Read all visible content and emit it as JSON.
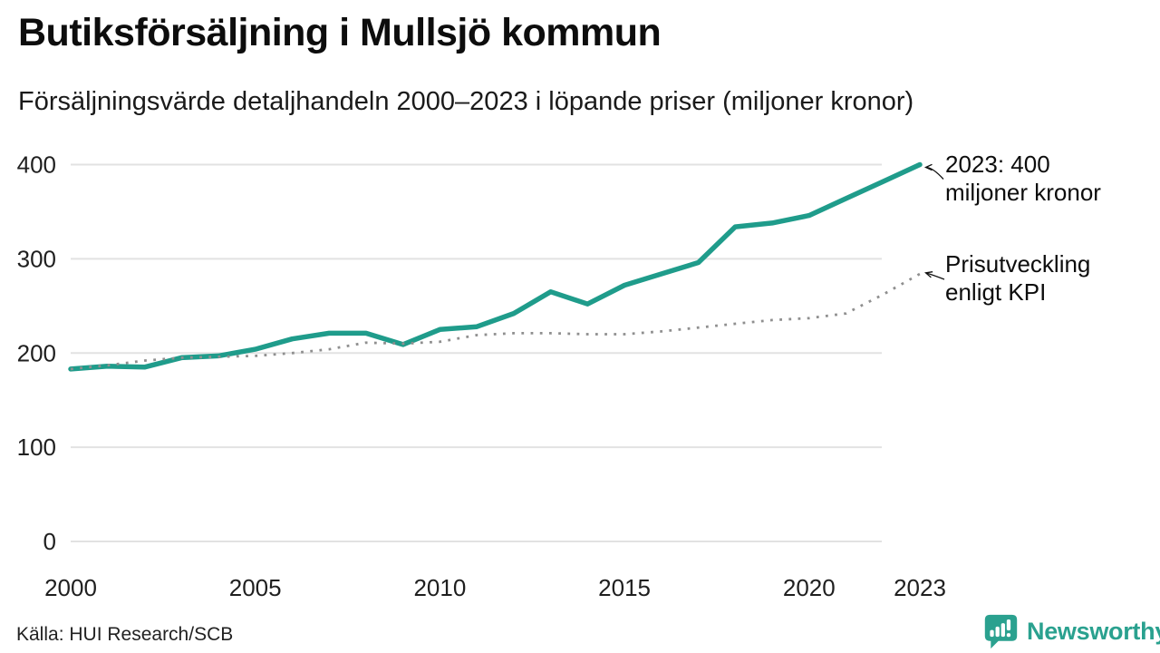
{
  "title": "Butiksförsäljning i Mullsjö kommun",
  "subtitle": "Försäljningsvärde detaljhandeln 2000–2023 i löpande priser (miljoner kronor)",
  "source": "Källa: HUI Research/SCB",
  "logo": {
    "text": "Newsworthy",
    "icon": "bar-chart-speech-bubble-icon"
  },
  "annotations": {
    "sales_end": {
      "line1": "2023: 400",
      "line2": "miljoner kronor"
    },
    "kpi_end": {
      "line1": "Prisutveckling",
      "line2": "enligt KPI"
    }
  },
  "colors": {
    "sales_line": "#1f9c8b",
    "kpi_line": "#8f8f8f",
    "grid": "#e2e2e2",
    "arrow": "#111111",
    "logo_teal": "#2aa18f"
  },
  "chart_data": {
    "type": "line",
    "x": [
      2000,
      2001,
      2002,
      2003,
      2004,
      2005,
      2006,
      2007,
      2008,
      2009,
      2010,
      2011,
      2012,
      2013,
      2014,
      2015,
      2016,
      2017,
      2018,
      2019,
      2020,
      2021,
      2022,
      2023
    ],
    "series": [
      {
        "name": "Försäljningsvärde detaljhandeln i löpande priser",
        "style": "solid",
        "values": [
          183,
          186,
          185,
          195,
          197,
          204,
          215,
          221,
          221,
          209,
          225,
          228,
          242,
          265,
          252,
          272,
          284,
          296,
          334,
          338,
          346,
          364,
          382,
          400
        ]
      },
      {
        "name": "Prisutveckling enligt KPI",
        "style": "dotted",
        "values": [
          183,
          187,
          192,
          195,
          196,
          197,
          200,
          204,
          211,
          210,
          212,
          219,
          221,
          221,
          220,
          220,
          223,
          227,
          231,
          235,
          237,
          242,
          262,
          284
        ]
      }
    ],
    "title": "Butiksförsäljning i Mullsjö kommun",
    "xlabel": "",
    "ylabel": "miljoner kronor",
    "ylim": [
      0,
      400
    ],
    "yticks": [
      0,
      100,
      200,
      300,
      400
    ],
    "xticks": [
      2000,
      2005,
      2010,
      2015,
      2020,
      2023
    ],
    "grid": "horizontal",
    "legend": "annotated-line-ends"
  }
}
